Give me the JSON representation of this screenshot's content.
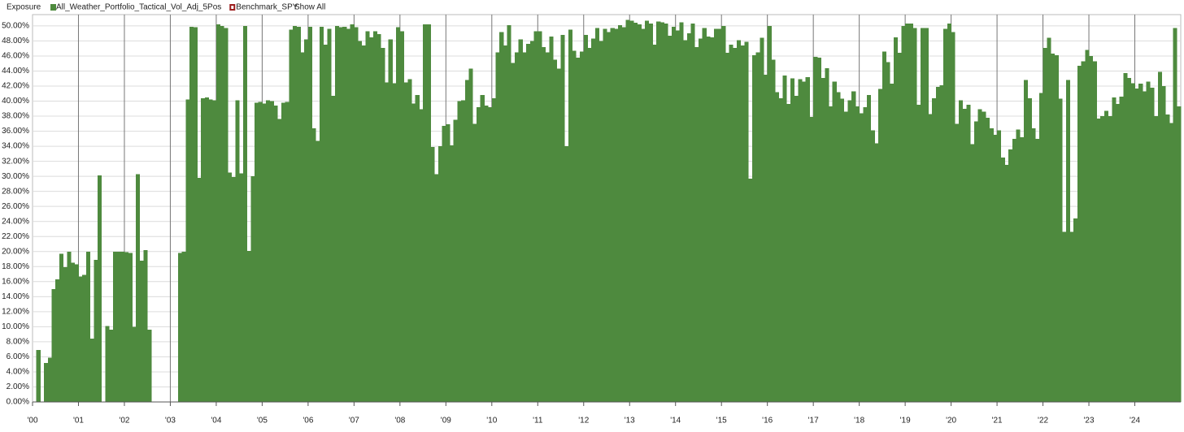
{
  "chart_data": {
    "type": "bar",
    "header": "Exposure",
    "show_all": "Show All",
    "series": [
      {
        "name": "All_Weather_Portfolio_Tactical_Vol_Adj_5Pos",
        "color": "#4e8a3e",
        "values": [
          0,
          6.9,
          0,
          5.2,
          5.9,
          15.0,
          16.3,
          19.7,
          17.9,
          20.0,
          18.5,
          18.3,
          16.7,
          16.9,
          20.0,
          8.4,
          18.9,
          30.1,
          0,
          10.1,
          9.6,
          20.0,
          20.0,
          20.0,
          19.9,
          19.8,
          10.0,
          30.3,
          18.8,
          20.2,
          9.6,
          0,
          0,
          0,
          0,
          0,
          0,
          0,
          19.8,
          20.0,
          40.2,
          49.9,
          49.8,
          29.8,
          40.4,
          40.5,
          40.2,
          40.1,
          50.2,
          50.0,
          49.7,
          30.5,
          29.9,
          40.1,
          30.4,
          50.0,
          20.1,
          30.0,
          39.8,
          39.9,
          39.7,
          40.1,
          40.0,
          39.4,
          37.6,
          39.8,
          39.9,
          49.5,
          50.0,
          49.9,
          46.5,
          48.2,
          49.9,
          36.4,
          34.7,
          49.9,
          47.5,
          49.6,
          40.7,
          50.0,
          49.8,
          49.9,
          49.6,
          50.2,
          49.8,
          48.0,
          47.4,
          49.3,
          48.5,
          49.3,
          48.9,
          47.1,
          42.5,
          48.2,
          42.4,
          49.8,
          49.3,
          42.5,
          42.9,
          39.7,
          40.8,
          38.9,
          50.2,
          50.2,
          33.9,
          30.3,
          34.0,
          36.7,
          36.9,
          34.1,
          37.5,
          40.0,
          40.1,
          42.8,
          44.3,
          37.0,
          39.2,
          40.8,
          39.4,
          39.2,
          40.4,
          46.5,
          49.2,
          47.4,
          50.1,
          45.1,
          46.5,
          48.2,
          46.5,
          47.6,
          48.0,
          49.3,
          49.3,
          47.2,
          46.5,
          48.6,
          45.5,
          44.3,
          48.8,
          34.0,
          49.5,
          46.7,
          45.8,
          46.6,
          48.8,
          47.1,
          48.3,
          49.7,
          48.0,
          49.6,
          49.2,
          49.7,
          49.6,
          50.1,
          49.8,
          50.8,
          50.7,
          50.4,
          50.2,
          49.6,
          50.7,
          50.3,
          47.5,
          50.6,
          50.5,
          50.3,
          48.7,
          49.9,
          49.4,
          50.5,
          48.1,
          49.0,
          50.3,
          47.2,
          48.3,
          49.7,
          48.6,
          48.5,
          49.6,
          49.6,
          50.0,
          46.4,
          47.5,
          47.1,
          48.1,
          47.4,
          47.9,
          29.7,
          46.1,
          46.5,
          48.4,
          43.5,
          50.0,
          45.5,
          41.2,
          40.4,
          43.4,
          39.6,
          43.0,
          40.7,
          42.9,
          42.6,
          43.2,
          37.9,
          45.9,
          45.8,
          43.1,
          44.4,
          39.3,
          42.6,
          41.2,
          40.3,
          38.6,
          40.1,
          41.3,
          39.3,
          38.4,
          39.2,
          40.8,
          36.1,
          34.4,
          41.6,
          46.6,
          45.2,
          42.3,
          48.5,
          46.4,
          50.0,
          50.3,
          50.3,
          49.7,
          39.5,
          49.7,
          49.7,
          38.3,
          40.4,
          41.9,
          42.1,
          49.6,
          50.3,
          49.2,
          37.0,
          40.1,
          39.0,
          39.5,
          34.3,
          37.3,
          38.9,
          38.6,
          37.8,
          36.4,
          35.5,
          36.1,
          32.5,
          31.5,
          33.6,
          35.0,
          36.2,
          35.2,
          42.8,
          40.4,
          36.4,
          35.0,
          41.1,
          47.1,
          48.4,
          46.3,
          46.1,
          40.3,
          22.6,
          42.8,
          22.6,
          24.4,
          44.7,
          45.3,
          46.8,
          46.0,
          45.3,
          37.7,
          38.0,
          38.7,
          38.0,
          40.5,
          39.6,
          40.6,
          43.7,
          43.1,
          42.4,
          41.7,
          42.3,
          41.3,
          42.6,
          41.8,
          38.0,
          43.9,
          42.0,
          38.2,
          37.1,
          49.7,
          39.3
        ]
      }
    ],
    "hidden_series": [
      {
        "name": "Benchmark_SPY",
        "color": "#9b1c1c"
      }
    ],
    "categories": [
      "'00",
      null,
      null,
      null,
      null,
      null,
      null,
      null,
      null,
      null,
      null,
      null,
      "'01",
      null,
      null,
      null,
      null,
      null,
      null,
      null,
      null,
      null,
      null,
      null,
      "'02",
      null,
      null,
      null,
      null,
      null,
      null,
      null,
      null,
      null,
      null,
      null,
      "'03",
      null,
      null,
      null,
      null,
      null,
      null,
      null,
      null,
      null,
      null,
      null,
      "'04",
      null,
      null,
      null,
      null,
      null,
      null,
      null,
      null,
      null,
      null,
      null,
      "'05",
      null,
      null,
      null,
      null,
      null,
      null,
      null,
      null,
      null,
      null,
      null,
      "'06",
      null,
      null,
      null,
      null,
      null,
      null,
      null,
      null,
      null,
      null,
      null,
      "'07",
      null,
      null,
      null,
      null,
      null,
      null,
      null,
      null,
      null,
      null,
      null,
      "'08",
      null,
      null,
      null,
      null,
      null,
      null,
      null,
      null,
      null,
      null,
      null,
      "'09",
      null,
      null,
      null,
      null,
      null,
      null,
      null,
      null,
      null,
      null,
      null,
      "'10",
      null,
      null,
      null,
      null,
      null,
      null,
      null,
      null,
      null,
      null,
      null,
      "'11",
      null,
      null,
      null,
      null,
      null,
      null,
      null,
      null,
      null,
      null,
      null,
      "'12",
      null,
      null,
      null,
      null,
      null,
      null,
      null,
      null,
      null,
      null,
      null,
      "'13",
      null,
      null,
      null,
      null,
      null,
      null,
      null,
      null,
      null,
      null,
      null,
      "'14",
      null,
      null,
      null,
      null,
      null,
      null,
      null,
      null,
      null,
      null,
      null,
      "'15",
      null,
      null,
      null,
      null,
      null,
      null,
      null,
      null,
      null,
      null,
      null,
      "'16",
      null,
      null,
      null,
      null,
      null,
      null,
      null,
      null,
      null,
      null,
      null,
      "'17",
      null,
      null,
      null,
      null,
      null,
      null,
      null,
      null,
      null,
      null,
      null,
      "'18",
      null,
      null,
      null,
      null,
      null,
      null,
      null,
      null,
      null,
      null,
      null,
      "'19",
      null,
      null,
      null,
      null,
      null,
      null,
      null,
      null,
      null,
      null,
      null,
      "'20",
      null,
      null,
      null,
      null,
      null,
      null,
      null,
      null,
      null,
      null,
      null,
      "'21",
      null,
      null,
      null,
      null,
      null,
      null,
      null,
      null,
      null,
      null,
      null,
      "'22",
      null,
      null,
      null,
      null,
      null,
      null,
      null,
      null,
      null,
      null,
      null,
      "'23",
      null,
      null,
      null,
      null,
      null,
      null,
      null,
      null,
      null,
      null,
      null,
      "'24",
      null,
      null,
      null,
      null,
      null,
      null,
      null,
      null,
      null,
      null,
      null
    ],
    "ylim": [
      0,
      51.5
    ],
    "yticks": [
      {
        "value": 0,
        "label": "0.00%"
      },
      {
        "value": 2,
        "label": "2.00%"
      },
      {
        "value": 4,
        "label": "4.00%"
      },
      {
        "value": 6,
        "label": "6.00%"
      },
      {
        "value": 8,
        "label": "8.00%"
      },
      {
        "value": 10,
        "label": "10.00%"
      },
      {
        "value": 12,
        "label": "12.00%"
      },
      {
        "value": 14,
        "label": "14.00%"
      },
      {
        "value": 16,
        "label": "16.00%"
      },
      {
        "value": 18,
        "label": "18.00%"
      },
      {
        "value": 20,
        "label": "20.00%"
      },
      {
        "value": 22,
        "label": "22.00%"
      },
      {
        "value": 24,
        "label": "24.00%"
      },
      {
        "value": 26,
        "label": "26.00%"
      },
      {
        "value": 28,
        "label": "28.00%"
      },
      {
        "value": 30,
        "label": "30.00%"
      },
      {
        "value": 32,
        "label": "32.00%"
      },
      {
        "value": 34,
        "label": "34.00%"
      },
      {
        "value": 36,
        "label": "36.00%"
      },
      {
        "value": 38,
        "label": "38.00%"
      },
      {
        "value": 40,
        "label": "40.00%"
      },
      {
        "value": 42,
        "label": "42.00%"
      },
      {
        "value": 44,
        "label": "44.00%"
      },
      {
        "value": 46,
        "label": "46.00%"
      },
      {
        "value": 48,
        "label": "48.00%"
      },
      {
        "value": 50,
        "label": "50.00%"
      }
    ],
    "grid": true
  }
}
